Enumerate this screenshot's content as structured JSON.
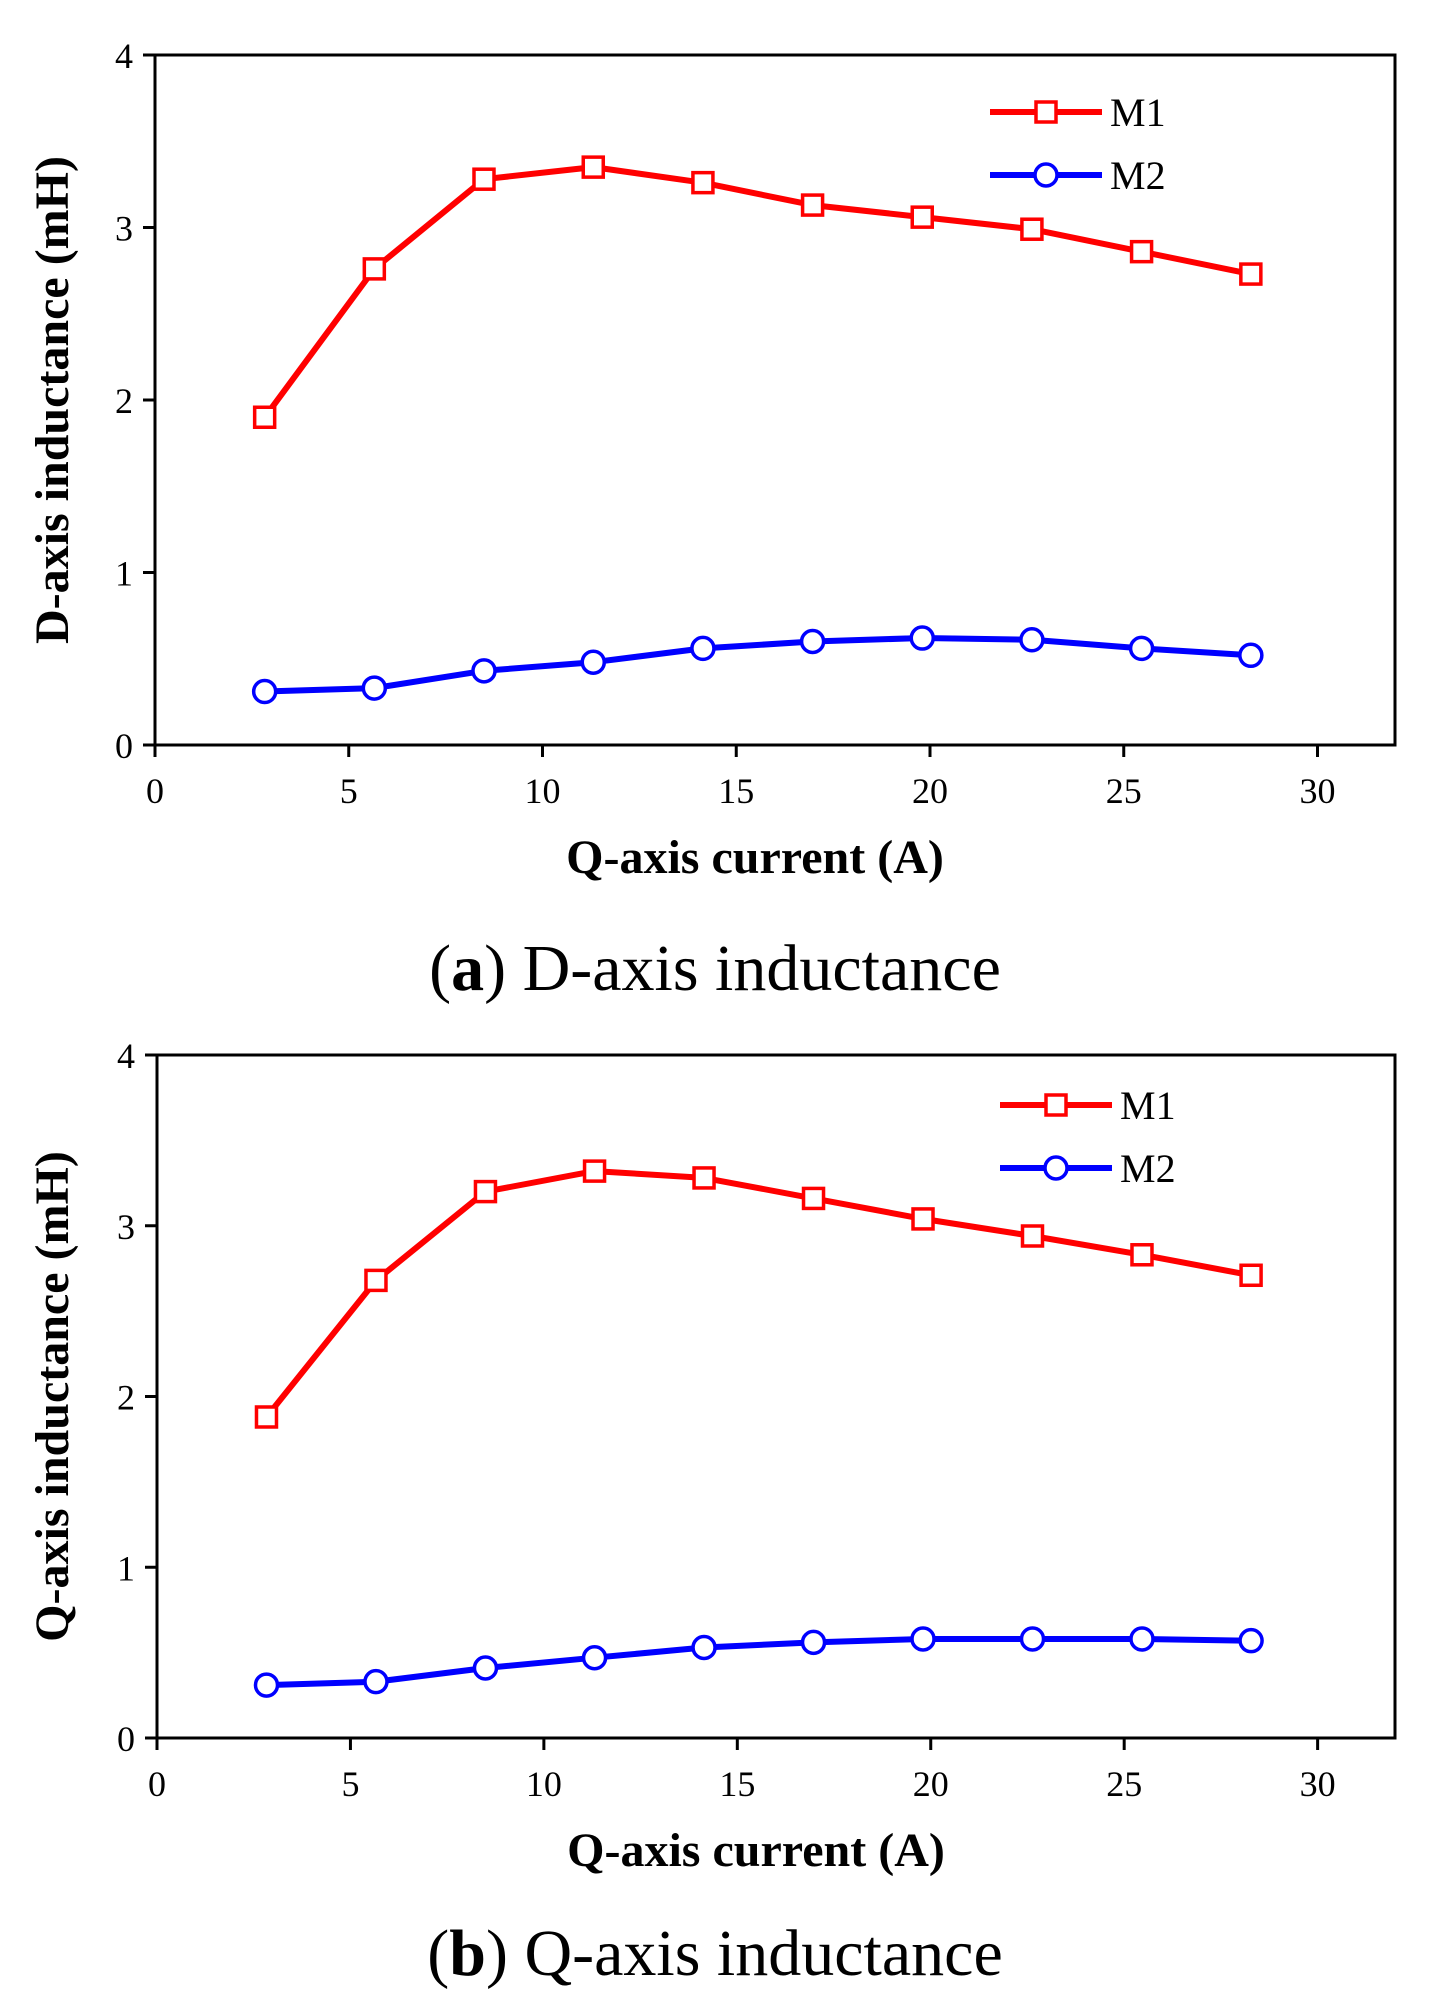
{
  "chart_data": [
    {
      "type": "line",
      "caption_letter": "a",
      "caption_text": "D-axis inductance",
      "xlabel": "Q-axis current (A)",
      "ylabel": "D-axis inductance (mH)",
      "xlim": [
        0,
        32
      ],
      "ylim": [
        0,
        4
      ],
      "xticks": [
        0,
        5,
        10,
        15,
        20,
        25,
        30
      ],
      "yticks": [
        0,
        1,
        2,
        3,
        4
      ],
      "legend_position": "top-right",
      "x": [
        2.83,
        5.66,
        8.49,
        11.31,
        14.14,
        16.97,
        19.8,
        22.63,
        25.46,
        28.28
      ],
      "series": [
        {
          "name": "M1",
          "color": "#ff0000",
          "marker": "square",
          "values": [
            1.9,
            2.76,
            3.28,
            3.35,
            3.26,
            3.13,
            3.06,
            2.99,
            2.86,
            2.73
          ]
        },
        {
          "name": "M2",
          "color": "#0000ff",
          "marker": "circle",
          "values": [
            0.31,
            0.33,
            0.43,
            0.48,
            0.56,
            0.6,
            0.62,
            0.61,
            0.56,
            0.52
          ]
        }
      ]
    },
    {
      "type": "line",
      "caption_letter": "b",
      "caption_text": "Q-axis inductance",
      "xlabel": "Q-axis current (A)",
      "ylabel": "Q-axis inductance (mH)",
      "xlim": [
        0,
        32
      ],
      "ylim": [
        0,
        4
      ],
      "xticks": [
        0,
        5,
        10,
        15,
        20,
        25,
        30
      ],
      "yticks": [
        0,
        1,
        2,
        3,
        4
      ],
      "legend_position": "top-right",
      "x": [
        2.83,
        5.66,
        8.49,
        11.31,
        14.14,
        16.97,
        19.8,
        22.63,
        25.46,
        28.28
      ],
      "series": [
        {
          "name": "M1",
          "color": "#ff0000",
          "marker": "square",
          "values": [
            1.88,
            2.68,
            3.2,
            3.32,
            3.28,
            3.16,
            3.04,
            2.94,
            2.83,
            2.71
          ]
        },
        {
          "name": "M2",
          "color": "#0000ff",
          "marker": "circle",
          "values": [
            0.31,
            0.33,
            0.41,
            0.47,
            0.53,
            0.56,
            0.58,
            0.58,
            0.58,
            0.57
          ]
        }
      ]
    }
  ]
}
